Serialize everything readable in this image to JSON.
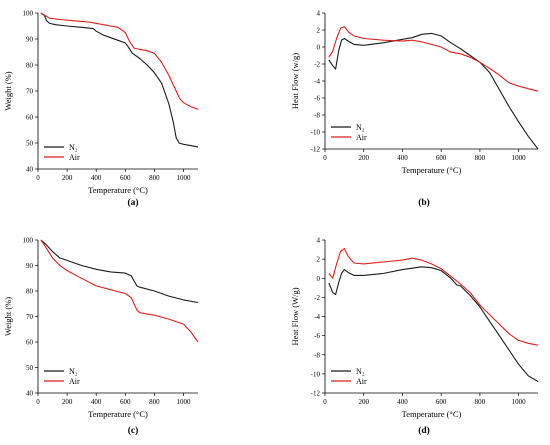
{
  "colors": {
    "n2": "#1a1a1a",
    "air": "#e0201b"
  },
  "chart_data": [
    {
      "type": "line",
      "panel_label": "(a)",
      "xlabel": "Temperature (°C)",
      "ylabel": "Weight (%)",
      "xlim": [
        0,
        1100
      ],
      "ylim": [
        40,
        100
      ],
      "xticks": [
        0,
        200,
        400,
        600,
        800,
        1000
      ],
      "yticks": [
        40,
        50,
        60,
        70,
        80,
        90,
        100
      ],
      "legend": {
        "position": "bottom-left",
        "entries": [
          "N₂",
          "Air"
        ]
      },
      "series": [
        {
          "name": "N₂",
          "color_key": "n2",
          "x": [
            20,
            45,
            60,
            80,
            120,
            200,
            300,
            380,
            400,
            450,
            500,
            550,
            600,
            620,
            650,
            700,
            750,
            800,
            850,
            900,
            930,
            950,
            970,
            1000,
            1050,
            1100
          ],
          "y": [
            100,
            99,
            97,
            96,
            95.5,
            95,
            94.5,
            94,
            93,
            91.5,
            90.5,
            89.5,
            88.5,
            87,
            84.5,
            82.5,
            80,
            77,
            73,
            65,
            58,
            52,
            50,
            49.5,
            49,
            48.5
          ]
        },
        {
          "name": "Air",
          "color_key": "air",
          "x": [
            20,
            50,
            80,
            150,
            250,
            350,
            450,
            500,
            550,
            600,
            630,
            660,
            700,
            750,
            800,
            850,
            900,
            950,
            975,
            1000,
            1050,
            1100
          ],
          "y": [
            100,
            99,
            98,
            97.5,
            97,
            96.5,
            95.5,
            95,
            94.5,
            92.5,
            89,
            86.5,
            86,
            85.5,
            84.5,
            81,
            76,
            70,
            67,
            65.5,
            64,
            63
          ]
        }
      ]
    },
    {
      "type": "line",
      "panel_label": "(b)",
      "xlabel": "Temperature (°C)",
      "ylabel": "Heat Flow (w/g)",
      "xlim": [
        0,
        1100
      ],
      "ylim": [
        -12,
        4
      ],
      "xticks": [
        0,
        200,
        400,
        600,
        800,
        1000
      ],
      "yticks": [
        -12,
        -10,
        -8,
        -6,
        -4,
        -2,
        0,
        2,
        4
      ],
      "legend": {
        "position": "bottom-left",
        "entries": [
          "N₂",
          "Air"
        ]
      },
      "series": [
        {
          "name": "N₂",
          "color_key": "n2",
          "x": [
            20,
            40,
            55,
            70,
            85,
            100,
            120,
            150,
            200,
            300,
            400,
            450,
            500,
            550,
            600,
            650,
            700,
            750,
            800,
            850,
            900,
            950,
            1000,
            1050,
            1100
          ],
          "y": [
            -1.5,
            -2.2,
            -2.6,
            -0.5,
            0.8,
            1.0,
            0.7,
            0.3,
            0.2,
            0.5,
            0.9,
            1.1,
            1.5,
            1.6,
            1.3,
            0.5,
            -0.2,
            -1.0,
            -1.8,
            -3.0,
            -5.0,
            -7.0,
            -8.8,
            -10.5,
            -12.0
          ]
        },
        {
          "name": "Air",
          "color_key": "air",
          "x": [
            20,
            40,
            60,
            80,
            100,
            120,
            150,
            200,
            300,
            400,
            450,
            500,
            550,
            600,
            650,
            700,
            750,
            800,
            850,
            900,
            950,
            1000,
            1050,
            1100
          ],
          "y": [
            -1.2,
            -0.5,
            1.0,
            2.2,
            2.4,
            1.8,
            1.3,
            1.0,
            0.8,
            0.7,
            0.8,
            0.6,
            0.3,
            0.0,
            -0.6,
            -0.8,
            -1.2,
            -1.8,
            -2.5,
            -3.3,
            -4.2,
            -4.6,
            -4.9,
            -5.2
          ]
        }
      ]
    },
    {
      "type": "line",
      "panel_label": "(c)",
      "xlabel": "Temperature (°C)",
      "ylabel": "Weight (%)",
      "xlim": [
        0,
        1100
      ],
      "ylim": [
        40,
        100
      ],
      "xticks": [
        0,
        200,
        400,
        600,
        800,
        1000
      ],
      "yticks": [
        40,
        50,
        60,
        70,
        80,
        90,
        100
      ],
      "legend": {
        "position": "bottom-left",
        "entries": [
          "N₂",
          "Air"
        ]
      },
      "series": [
        {
          "name": "N₂",
          "color_key": "n2",
          "x": [
            20,
            50,
            100,
            150,
            200,
            300,
            400,
            500,
            600,
            640,
            660,
            680,
            700,
            800,
            900,
            1000,
            1100
          ],
          "y": [
            100,
            98.5,
            95.5,
            93,
            92,
            90,
            88.5,
            87.5,
            87,
            86,
            84,
            82,
            81.5,
            80,
            78,
            76.5,
            75.5
          ]
        },
        {
          "name": "Air",
          "color_key": "air",
          "x": [
            20,
            50,
            100,
            150,
            200,
            300,
            400,
            500,
            600,
            640,
            660,
            680,
            700,
            800,
            900,
            1000,
            1050,
            1100
          ],
          "y": [
            100,
            97.5,
            93,
            90,
            88,
            85,
            82,
            80.5,
            79,
            77.5,
            75,
            72.5,
            71.5,
            70.5,
            69,
            67,
            64,
            60
          ]
        }
      ]
    },
    {
      "type": "line",
      "panel_label": "(d)",
      "xlabel": "Temperature (°C)",
      "ylabel": "Heat Flow (W/g)",
      "xlim": [
        0,
        1100
      ],
      "ylim": [
        -12,
        4
      ],
      "xticks": [
        0,
        200,
        400,
        600,
        800,
        1000
      ],
      "yticks": [
        -12,
        -10,
        -8,
        -6,
        -4,
        -2,
        0,
        2,
        4
      ],
      "legend": {
        "position": "bottom-left",
        "entries": [
          "N₂",
          "Air"
        ]
      },
      "series": [
        {
          "name": "N₂",
          "color_key": "n2",
          "x": [
            20,
            40,
            55,
            70,
            85,
            100,
            120,
            150,
            200,
            300,
            400,
            500,
            550,
            600,
            650,
            680,
            700,
            750,
            800,
            850,
            900,
            950,
            1000,
            1050,
            1100
          ],
          "y": [
            -0.5,
            -1.5,
            -1.7,
            -0.5,
            0.5,
            0.9,
            0.6,
            0.3,
            0.3,
            0.5,
            0.9,
            1.2,
            1.1,
            0.8,
            0.0,
            -0.7,
            -0.8,
            -1.8,
            -3.0,
            -4.5,
            -6.0,
            -7.5,
            -9.0,
            -10.2,
            -10.8
          ]
        },
        {
          "name": "Air",
          "color_key": "air",
          "x": [
            20,
            40,
            60,
            80,
            100,
            120,
            150,
            200,
            300,
            400,
            450,
            500,
            550,
            600,
            650,
            700,
            750,
            800,
            850,
            900,
            950,
            1000,
            1050,
            1100
          ],
          "y": [
            0.5,
            0.0,
            1.5,
            2.8,
            3.1,
            2.3,
            1.6,
            1.5,
            1.7,
            1.9,
            2.1,
            1.9,
            1.5,
            1.0,
            0.2,
            -0.6,
            -1.5,
            -2.8,
            -3.8,
            -4.8,
            -5.8,
            -6.5,
            -6.8,
            -7.0
          ]
        }
      ]
    }
  ]
}
